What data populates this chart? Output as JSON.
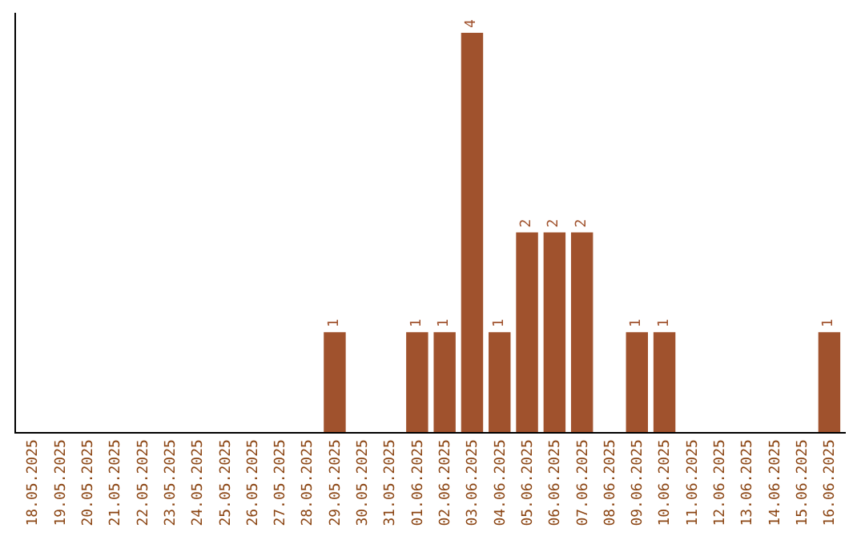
{
  "chart_data": {
    "type": "bar",
    "categories": [
      "18.05.2025",
      "19.05.2025",
      "20.05.2025",
      "21.05.2025",
      "22.05.2025",
      "23.05.2025",
      "24.05.2025",
      "25.05.2025",
      "26.05.2025",
      "27.05.2025",
      "28.05.2025",
      "29.05.2025",
      "30.05.2025",
      "31.05.2025",
      "01.06.2025",
      "02.06.2025",
      "03.06.2025",
      "04.06.2025",
      "05.06.2025",
      "06.06.2025",
      "07.06.2025",
      "08.06.2025",
      "09.06.2025",
      "10.06.2025",
      "11.06.2025",
      "12.06.2025",
      "13.06.2025",
      "14.06.2025",
      "15.06.2025",
      "16.06.2025"
    ],
    "values": [
      0,
      0,
      0,
      0,
      0,
      0,
      0,
      0,
      0,
      0,
      0,
      1,
      0,
      0,
      1,
      1,
      4,
      1,
      2,
      2,
      2,
      0,
      1,
      1,
      0,
      0,
      0,
      0,
      0,
      1
    ],
    "value_labels": [
      null,
      null,
      null,
      null,
      null,
      null,
      null,
      null,
      null,
      null,
      null,
      "1",
      null,
      null,
      "1",
      "1",
      "4",
      "1",
      "2",
      "2",
      "2",
      null,
      "1",
      "1",
      null,
      null,
      null,
      null,
      null,
      "1"
    ],
    "color": "#a0522d",
    "tick_labels": "x",
    "legend": false
  }
}
